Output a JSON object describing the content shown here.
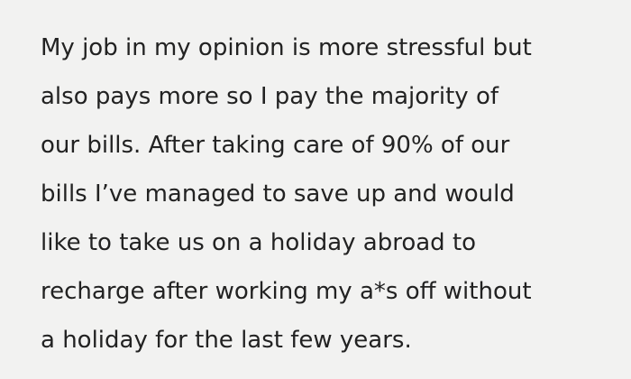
{
  "lines": [
    "My job in my opinion is more stressful but",
    "also pays more so I pay the majority of",
    "our bills. After taking care of 90% of our",
    "bills I’ve managed to save up and would",
    "like to take us on a holiday abroad to",
    "recharge after working my a*s off without",
    "a holiday for the last few years."
  ]
}
